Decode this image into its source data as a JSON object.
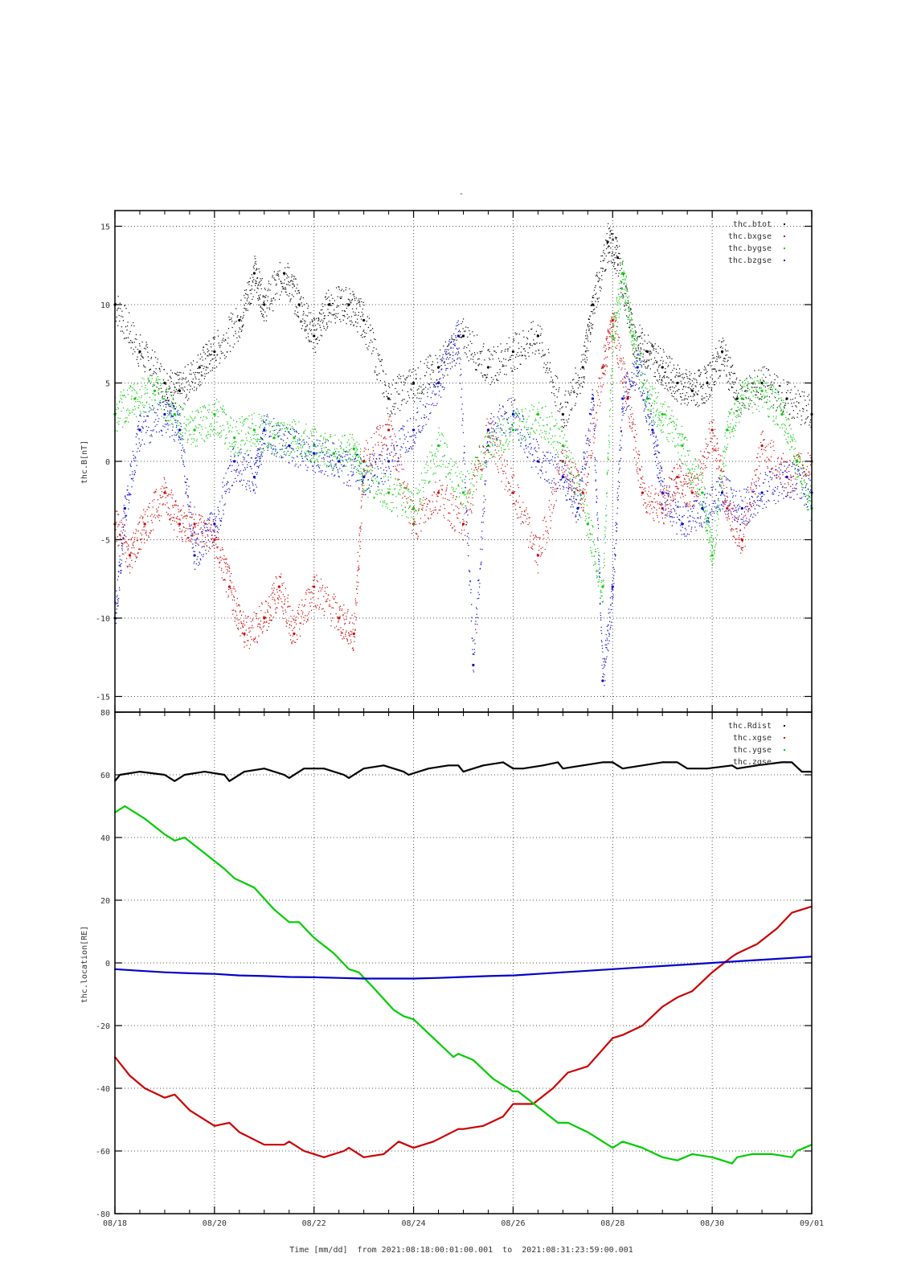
{
  "chart_data": [
    {
      "type": "scatter",
      "title": "",
      "ylabel": "thc.B[nT]",
      "xlim": [
        "08/18",
        "09/01"
      ],
      "ylim": [
        -16,
        16
      ],
      "yticks": [
        -15,
        -10,
        -5,
        0,
        5,
        10,
        15
      ],
      "grid": true,
      "legend_position": "top-right",
      "series": [
        {
          "name": "thc.btot",
          "color": "#000000",
          "x": [
            18.0,
            18.5,
            19.0,
            19.3,
            19.7,
            20.0,
            20.5,
            20.8,
            21.0,
            21.4,
            21.7,
            22.0,
            22.3,
            22.7,
            23.0,
            23.5,
            24.0,
            24.5,
            25.0,
            25.5,
            26.0,
            26.5,
            27.0,
            27.4,
            27.6,
            27.9,
            28.1,
            28.4,
            28.7,
            29.0,
            29.3,
            29.6,
            29.9,
            30.2,
            30.5,
            31.0,
            31.5,
            32.0
          ],
          "y": [
            10,
            7,
            5,
            4.5,
            6,
            7,
            9,
            12,
            10,
            12,
            10,
            8,
            10,
            10,
            9,
            4,
            5,
            6,
            8,
            6,
            7,
            8,
            3,
            6,
            10,
            14,
            13,
            8,
            7,
            6,
            5,
            4.5,
            5,
            7,
            4,
            5,
            4,
            3
          ]
        },
        {
          "name": "thc.bxgse",
          "color": "#cc0000",
          "x": [
            18.0,
            18.3,
            18.6,
            19.0,
            19.3,
            19.6,
            20.0,
            20.3,
            20.6,
            21.0,
            21.3,
            21.6,
            22.0,
            22.5,
            22.8,
            23.0,
            23.5,
            24.0,
            24.5,
            25.0,
            25.5,
            26.0,
            26.5,
            27.0,
            27.4,
            27.8,
            28.0,
            28.3,
            28.6,
            29.0,
            29.3,
            29.6,
            30.0,
            30.3,
            30.6,
            31.0,
            31.5,
            32.0
          ],
          "y": [
            -4,
            -6,
            -4,
            -2,
            -4,
            -4,
            -5,
            -8,
            -11,
            -10,
            -8,
            -11,
            -8,
            -10,
            -11,
            0,
            2,
            -4,
            -2,
            -4,
            2,
            -2,
            -6,
            0,
            -2,
            6,
            9,
            4,
            -2,
            -3,
            -1,
            -2,
            2,
            -3,
            -5,
            1,
            -1,
            0
          ]
        },
        {
          "name": "thc.bygse",
          "color": "#00cc00",
          "x": [
            18.0,
            18.4,
            18.8,
            19.2,
            19.6,
            20.0,
            20.4,
            20.8,
            21.2,
            21.6,
            22.0,
            22.4,
            22.8,
            23.0,
            23.5,
            24.0,
            24.5,
            25.0,
            25.5,
            26.0,
            26.5,
            27.0,
            27.5,
            27.8,
            28.0,
            28.2,
            28.4,
            28.7,
            29.0,
            29.4,
            29.8,
            30.0,
            30.3,
            30.6,
            31.0,
            31.4,
            31.7,
            32.0
          ],
          "y": [
            3,
            4,
            4.5,
            3,
            2,
            3,
            1.5,
            2,
            1.5,
            1.5,
            1,
            0.5,
            0.8,
            -1,
            -2,
            -3,
            1,
            -2,
            1,
            2,
            3,
            1,
            -4,
            -8,
            8,
            12,
            8,
            4,
            3,
            1,
            -2,
            -6,
            2,
            4,
            4.5,
            3,
            0,
            -3
          ]
        },
        {
          "name": "thc.bzgse",
          "color": "#0000cc",
          "x": [
            18.0,
            18.2,
            18.5,
            19.0,
            19.3,
            19.6,
            20.0,
            20.4,
            20.8,
            21.0,
            21.5,
            22.0,
            22.5,
            23.0,
            23.5,
            24.0,
            24.5,
            24.9,
            25.2,
            25.5,
            26.0,
            26.5,
            27.0,
            27.3,
            27.6,
            27.8,
            28.0,
            28.2,
            28.5,
            28.8,
            29.0,
            29.4,
            29.8,
            30.2,
            30.6,
            31.0,
            31.5,
            32.0
          ],
          "y": [
            -10,
            -3,
            2,
            3,
            2,
            -6,
            -4,
            0,
            -1,
            2,
            1,
            0.5,
            0,
            -1,
            0,
            2,
            5,
            8,
            -13,
            2,
            3,
            0,
            -1,
            -3,
            4,
            -14,
            -8,
            4,
            6,
            2,
            -2,
            -4,
            -3,
            -2,
            -3,
            -2,
            -1,
            -2
          ]
        }
      ]
    },
    {
      "type": "line",
      "ylabel": "thc.location[RE]",
      "xlabel": "Time [mm/dd]  from 2021:08:18:00:01:00.001  to  2021:08:31:23:59:00.001",
      "xticks": [
        "08/18",
        "08/20",
        "08/22",
        "08/24",
        "08/26",
        "08/28",
        "08/30",
        "09/01"
      ],
      "xlim": [
        "08/18",
        "09/01"
      ],
      "ylim": [
        -80,
        80
      ],
      "yticks": [
        -80,
        -60,
        -40,
        -20,
        0,
        20,
        40,
        60,
        80
      ],
      "grid": true,
      "legend_position": "top-right",
      "series": [
        {
          "name": "thc.Rdist",
          "color": "#000000",
          "x": [
            18.0,
            18.1,
            18.5,
            19.0,
            19.2,
            19.4,
            19.8,
            20.2,
            20.3,
            20.6,
            21.0,
            21.4,
            21.5,
            21.8,
            22.2,
            22.6,
            22.7,
            23.0,
            23.4,
            23.8,
            23.9,
            24.3,
            24.7,
            24.9,
            25.0,
            25.4,
            25.8,
            26.0,
            26.2,
            26.6,
            26.9,
            27.0,
            27.4,
            27.8,
            28.0,
            28.2,
            28.6,
            29.0,
            29.3,
            29.5,
            29.9,
            30.4,
            30.5,
            30.9,
            31.4,
            31.6,
            31.8,
            32.0
          ],
          "y": [
            58,
            60,
            61,
            60,
            58,
            60,
            61,
            60,
            58,
            61,
            62,
            60,
            59,
            62,
            62,
            60,
            59,
            62,
            63,
            61,
            60,
            62,
            63,
            63,
            61,
            63,
            64,
            62,
            62,
            63,
            64,
            62,
            63,
            64,
            64,
            62,
            63,
            64,
            64,
            62,
            62,
            63,
            62,
            63,
            64,
            64,
            61,
            61
          ]
        },
        {
          "name": "thc.xgse",
          "color": "#cc0000",
          "x": [
            18.0,
            18.3,
            18.6,
            19.0,
            19.2,
            19.5,
            20.0,
            20.3,
            20.5,
            21.0,
            21.4,
            21.5,
            21.8,
            22.2,
            22.6,
            22.7,
            23.0,
            23.4,
            23.7,
            24.0,
            24.4,
            24.9,
            25.0,
            25.4,
            25.8,
            26.0,
            26.4,
            26.8,
            27.1,
            27.5,
            28.0,
            28.2,
            28.6,
            29.0,
            29.3,
            29.6,
            30.0,
            30.4,
            30.5,
            30.9,
            31.3,
            31.6,
            32.0
          ],
          "y": [
            -30,
            -36,
            -40,
            -43,
            -42,
            -47,
            -52,
            -51,
            -54,
            -58,
            -58,
            -57,
            -60,
            -62,
            -60,
            -59,
            -62,
            -61,
            -57,
            -59,
            -57,
            -53,
            -53,
            -52,
            -49,
            -45,
            -45,
            -40,
            -35,
            -33,
            -24,
            -23,
            -20,
            -14,
            -11,
            -9,
            -3,
            2,
            3,
            6,
            11,
            16,
            18
          ]
        },
        {
          "name": "thc.ygse",
          "color": "#00cc00",
          "x": [
            18.0,
            18.2,
            18.6,
            19.0,
            19.2,
            19.4,
            19.8,
            20.2,
            20.4,
            20.8,
            21.2,
            21.5,
            21.7,
            22.0,
            22.4,
            22.7,
            22.9,
            23.2,
            23.6,
            23.8,
            24.0,
            24.4,
            24.8,
            24.9,
            25.2,
            25.6,
            26.0,
            26.1,
            26.5,
            26.9,
            27.1,
            27.5,
            27.9,
            28.0,
            28.2,
            28.6,
            29.0,
            29.3,
            29.6,
            30.0,
            30.4,
            30.5,
            30.8,
            31.2,
            31.6,
            31.7,
            32.0
          ],
          "y": [
            48,
            50,
            46,
            41,
            39,
            40,
            35,
            30,
            27,
            24,
            17,
            13,
            13,
            8,
            3,
            -2,
            -3,
            -8,
            -15,
            -17,
            -18,
            -24,
            -30,
            -29,
            -31,
            -37,
            -41,
            -41,
            -46,
            -51,
            -51,
            -54,
            -58,
            -59,
            -57,
            -59,
            -62,
            -63,
            -61,
            -62,
            -64,
            -62,
            -61,
            -61,
            -62,
            -60,
            -58
          ]
        },
        {
          "name": "thc.zgse",
          "color": "#0000cc",
          "x": [
            18.0,
            18.5,
            19.0,
            19.5,
            20.0,
            20.5,
            21.0,
            21.5,
            22.0,
            22.5,
            23.0,
            23.5,
            24.0,
            24.5,
            25.0,
            25.5,
            26.0,
            26.5,
            27.0,
            27.5,
            28.0,
            28.5,
            29.0,
            29.5,
            30.0,
            30.5,
            31.0,
            31.5,
            32.0
          ],
          "y": [
            -2,
            -2.5,
            -3,
            -3.3,
            -3.5,
            -4,
            -4.2,
            -4.5,
            -4.6,
            -4.8,
            -5,
            -5,
            -5,
            -4.8,
            -4.5,
            -4.2,
            -4,
            -3.5,
            -3,
            -2.5,
            -2,
            -1.5,
            -1,
            -0.5,
            0,
            0.5,
            1,
            1.5,
            2
          ]
        }
      ]
    }
  ]
}
